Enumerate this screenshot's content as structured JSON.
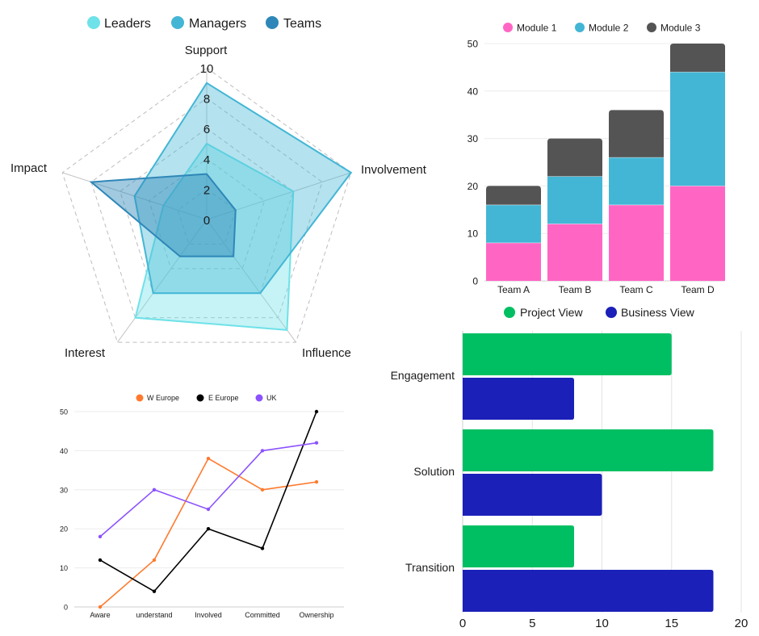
{
  "chart_data": [
    {
      "id": "radar",
      "type": "radar",
      "title": "",
      "axes": [
        "Support",
        "Involvement",
        "Influence",
        "Interest",
        "Impact"
      ],
      "range": [
        0,
        10
      ],
      "ticks": [
        "0",
        "2",
        "4",
        "6",
        "8",
        "10"
      ],
      "grid": true,
      "legend_position": "top",
      "series": [
        {
          "name": "Leaders",
          "color": "#6ee2e8",
          "values": [
            5,
            6,
            9,
            8,
            3
          ]
        },
        {
          "name": "Managers",
          "color": "#43b6d5",
          "values": [
            9,
            10,
            6,
            6,
            5
          ]
        },
        {
          "name": "Teams",
          "color": "#2e87b8",
          "values": [
            3,
            2,
            3,
            3,
            8
          ]
        }
      ]
    },
    {
      "id": "stacked",
      "type": "bar",
      "stacked": true,
      "title": "",
      "xlabel": "",
      "ylabel": "",
      "categories": [
        "Team A",
        "Team B",
        "Team C",
        "Team D"
      ],
      "ylim": [
        0,
        50
      ],
      "yticks": [
        "0",
        "10",
        "20",
        "30",
        "40",
        "50"
      ],
      "grid": true,
      "legend_position": "top",
      "series": [
        {
          "name": "Module 1",
          "color": "#ff66c4",
          "values": [
            8,
            12,
            16,
            20
          ]
        },
        {
          "name": "Module 2",
          "color": "#43b6d5",
          "values": [
            8,
            10,
            10,
            24
          ]
        },
        {
          "name": "Module 3",
          "color": "#545454",
          "values": [
            4,
            8,
            10,
            6
          ]
        }
      ]
    },
    {
      "id": "line",
      "type": "line",
      "title": "",
      "xlabel": "",
      "ylabel": "",
      "categories": [
        "Aware",
        "understand",
        "Involved",
        "Committed",
        "Ownership"
      ],
      "ylim": [
        0,
        50
      ],
      "yticks": [
        "0",
        "10",
        "20",
        "30",
        "40",
        "50"
      ],
      "grid": true,
      "legend_position": "top",
      "series": [
        {
          "name": "W Europe",
          "color": "#ff7a2e",
          "values": [
            0,
            12,
            38,
            30,
            32
          ]
        },
        {
          "name": "E Europe",
          "color": "#000000",
          "values": [
            12,
            4,
            20,
            15,
            50
          ]
        },
        {
          "name": "UK",
          "color": "#8c52ff",
          "values": [
            18,
            30,
            25,
            40,
            42
          ]
        }
      ]
    },
    {
      "id": "hbar",
      "type": "bar",
      "orientation": "horizontal",
      "title": "",
      "xlabel": "",
      "ylabel": "",
      "categories": [
        "Engagement",
        "Solution",
        "Transition"
      ],
      "xlim": [
        0,
        20
      ],
      "xticks": [
        "0",
        "5",
        "10",
        "15",
        "20"
      ],
      "grid": true,
      "legend_position": "top",
      "series": [
        {
          "name": "Project View",
          "color": "#00bf63",
          "values": [
            15,
            18,
            8
          ]
        },
        {
          "name": "Business View",
          "color": "#1a20b8",
          "values": [
            8,
            10,
            18
          ]
        }
      ]
    }
  ]
}
